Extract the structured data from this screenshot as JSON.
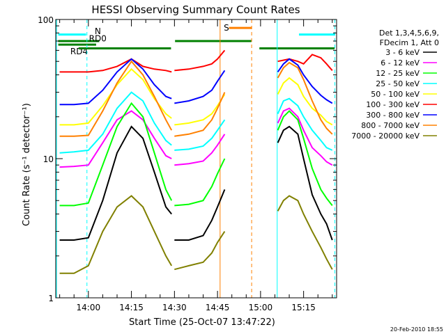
{
  "chart_data": {
    "type": "line",
    "title": "HESSI Observing Summary Count Rates",
    "xlabel": "Start Time (25-Oct-07 13:47:22)",
    "ylabel": "Count Rate (s⁻¹ detector⁻¹)",
    "yscale": "log",
    "ylim": [
      1,
      100
    ],
    "xlim_minutes": [
      -11.37,
      86.5
    ],
    "x_ticks": [
      {
        "label": "14:00",
        "min": 0
      },
      {
        "label": "14:15",
        "min": 15
      },
      {
        "label": "14:30",
        "min": 30
      },
      {
        "label": "14:45",
        "min": 45
      },
      {
        "label": "15:00",
        "min": 60
      },
      {
        "label": "15:15",
        "min": 75
      }
    ],
    "y_ticks": [
      {
        "label": "1",
        "value": 1
      },
      {
        "label": "10",
        "value": 10
      },
      {
        "label": "100",
        "value": 100
      }
    ],
    "legend_header": [
      "Det 1,3,4,5,6,9,",
      "FDecim 1, Att 0"
    ],
    "legend_position": "right",
    "series": [
      {
        "name": "3 - 6 keV",
        "color": "#000000",
        "segments": [
          {
            "x": [
              -10,
              -5,
              0,
              5,
              10,
              15,
              19,
              23,
              27,
              29
            ],
            "y": [
              2.6,
              2.6,
              2.7,
              5,
              11,
              17,
              14,
              8,
              4.5,
              4
            ]
          },
          {
            "x": [
              30,
              35,
              40,
              43,
              45,
              47.5
            ],
            "y": [
              2.6,
              2.6,
              2.8,
              3.6,
              4.5,
              6
            ]
          },
          {
            "x": [
              66,
              68,
              70,
              73,
              75,
              78,
              81,
              83,
              85
            ],
            "y": [
              13,
              16,
              17,
              15,
              10,
              5.5,
              4,
              3.4,
              2.6
            ]
          }
        ]
      },
      {
        "name": "6 - 12 keV",
        "color": "#ff00ff",
        "segments": [
          {
            "x": [
              -10,
              -5,
              0,
              5,
              10,
              15,
              19,
              23,
              27,
              29
            ],
            "y": [
              8.7,
              8.8,
              9,
              13,
              19,
              22,
              19,
              14,
              10.5,
              10
            ]
          },
          {
            "x": [
              30,
              35,
              40,
              43,
              45,
              47.5
            ],
            "y": [
              9,
              9.2,
              9.6,
              11,
              12.5,
              15
            ]
          },
          {
            "x": [
              66,
              68,
              70,
              73,
              75,
              78,
              81,
              83,
              85
            ],
            "y": [
              18,
              22,
              23,
              20,
              16,
              12,
              10.5,
              9.5,
              9
            ]
          }
        ]
      },
      {
        "name": "12 - 25 keV",
        "color": "#00ff00",
        "segments": [
          {
            "x": [
              -10,
              -5,
              0,
              5,
              10,
              15,
              19,
              23,
              27,
              29
            ],
            "y": [
              4.6,
              4.6,
              4.8,
              9,
              17,
              25,
              20,
              11,
              6,
              5
            ]
          },
          {
            "x": [
              30,
              35,
              40,
              43,
              45,
              47.5
            ],
            "y": [
              4.6,
              4.7,
              5,
              6.3,
              7.8,
              10
            ]
          },
          {
            "x": [
              66,
              68,
              70,
              73,
              75,
              78,
              81,
              83,
              85
            ],
            "y": [
              16,
              20,
              22,
              19,
              14,
              8.5,
              6,
              5.2,
              4.6
            ]
          }
        ]
      },
      {
        "name": "25 - 50 keV",
        "color": "#00ffff",
        "segments": [
          {
            "x": [
              -10,
              -5,
              0,
              5,
              10,
              15,
              19,
              23,
              27,
              29
            ],
            "y": [
              11,
              11.2,
              11.5,
              15,
              23,
              30,
              26,
              18,
              13.5,
              12.5
            ]
          },
          {
            "x": [
              30,
              35,
              40,
              43,
              45,
              47.5
            ],
            "y": [
              11.5,
              11.7,
              12.3,
              14,
              16,
              19
            ]
          },
          {
            "x": [
              66,
              68,
              70,
              73,
              75,
              78,
              81,
              83,
              85
            ],
            "y": [
              21,
              26,
              27,
              24,
              20,
              16,
              13.5,
              12,
              11.5
            ]
          }
        ]
      },
      {
        "name": "50 - 100 keV",
        "color": "#ffff00",
        "segments": [
          {
            "x": [
              -10,
              -5,
              0,
              5,
              10,
              15,
              19,
              23,
              27,
              29
            ],
            "y": [
              17.5,
              17.5,
              18,
              24,
              34,
              44,
              37,
              27,
              21,
              19.5
            ]
          },
          {
            "x": [
              30,
              35,
              40,
              43,
              45,
              47.5
            ],
            "y": [
              17.5,
              18,
              19,
              21,
              24,
              29
            ]
          },
          {
            "x": [
              66,
              68,
              70,
              73,
              75,
              78,
              81,
              83,
              85
            ],
            "y": [
              29,
              35,
              38,
              34,
              28,
              23,
              20.5,
              18.5,
              17.5
            ]
          }
        ]
      },
      {
        "name": "100 - 300 keV",
        "color": "#ff0000",
        "segments": [
          {
            "x": [
              -10,
              -5,
              0,
              5,
              10,
              15,
              19,
              23,
              27,
              29
            ],
            "y": [
              42,
              42,
              42,
              43,
              46,
              52,
              46,
              44,
              43,
              42
            ]
          },
          {
            "x": [
              30,
              35,
              40,
              43,
              45,
              47.5
            ],
            "y": [
              43,
              44,
              46,
              48,
              52,
              60
            ]
          },
          {
            "x": [
              66,
              68,
              70,
              73,
              75,
              78,
              81,
              83,
              85
            ],
            "y": [
              50,
              51,
              52,
              50,
              48,
              56,
              53,
              48,
              43
            ]
          }
        ]
      },
      {
        "name": "300 - 800 keV",
        "color": "#0000ff",
        "segments": [
          {
            "x": [
              -10,
              -5,
              0,
              5,
              10,
              15,
              19,
              23,
              27,
              29
            ],
            "y": [
              24.5,
              24.5,
              25,
              31,
              42,
              52,
              44,
              34,
              28,
              27
            ]
          },
          {
            "x": [
              30,
              35,
              40,
              43,
              45,
              47.5
            ],
            "y": [
              25,
              26,
              28,
              31,
              36,
              43
            ]
          },
          {
            "x": [
              66,
              68,
              70,
              73,
              75,
              78,
              81,
              83,
              85
            ],
            "y": [
              42,
              48,
              52,
              47,
              40,
              33,
              28.5,
              26.5,
              25
            ]
          }
        ]
      },
      {
        "name": "800 - 7000 keV",
        "color": "#ff8000",
        "segments": [
          {
            "x": [
              -10,
              -5,
              0,
              5,
              10,
              15,
              19,
              23,
              27,
              29
            ],
            "y": [
              14.5,
              14.5,
              14.7,
              22,
              35,
              50,
              40,
              28,
              19,
              16
            ]
          },
          {
            "x": [
              30,
              35,
              40,
              43,
              45,
              47.5
            ],
            "y": [
              14.5,
              15,
              16,
              19,
              23,
              30
            ]
          },
          {
            "x": [
              66,
              68,
              70,
              73,
              75,
              78,
              81,
              83,
              85
            ],
            "y": [
              38,
              45,
              49,
              45,
              37,
              26,
              19,
              16.5,
              15
            ]
          }
        ]
      },
      {
        "name": "7000 - 20000 keV",
        "color": "#808000",
        "segments": [
          {
            "x": [
              -10,
              -5,
              0,
              5,
              10,
              15,
              19,
              23,
              27,
              29
            ],
            "y": [
              1.5,
              1.5,
              1.7,
              3,
              4.5,
              5.4,
              4.5,
              3,
              2,
              1.7
            ]
          },
          {
            "x": [
              30,
              35,
              40,
              43,
              45,
              47.5
            ],
            "y": [
              1.6,
              1.7,
              1.8,
              2.1,
              2.5,
              3
            ]
          },
          {
            "x": [
              66,
              68,
              70,
              73,
              75,
              78,
              81,
              83,
              85
            ],
            "y": [
              4.2,
              5,
              5.4,
              5,
              4,
              3,
              2.3,
              1.9,
              1.6
            ]
          }
        ]
      }
    ],
    "flag_bars": [
      {
        "label": "N",
        "color": "#00ffff",
        "y": 78,
        "x": [
          -10.5,
          -0.8
        ],
        "label_x": 2.2,
        "label_y": 82,
        "label_color": "#00ffff"
      },
      {
        "label": "",
        "color": "#00ffff",
        "y": 78,
        "x": [
          73.4,
          85.8
        ]
      },
      {
        "label": "RD0",
        "color": "#008000",
        "y": 70,
        "x": [
          -10.5,
          3.8
        ],
        "label_x": 0.2,
        "label_y": 73,
        "label_color": "#000000"
      },
      {
        "label": "RD4",
        "color": "#008000",
        "y": 66,
        "x": [
          -10.5,
          2.7
        ],
        "label_x": -6.3,
        "label_y": 59,
        "label_color": "#000000"
      },
      {
        "label": "",
        "color": "#008000",
        "y": 62,
        "x": [
          -3.4,
          28.8
        ]
      },
      {
        "label": "",
        "color": "#008000",
        "y": 70,
        "x": [
          30.2,
          56.8
        ]
      },
      {
        "label": "",
        "color": "#008000",
        "y": 62,
        "x": [
          59.6,
          85.8
        ]
      },
      {
        "label": "S",
        "color": "#ff8000",
        "y": 87,
        "x": [
          49,
          57
        ],
        "label_x": 47.2,
        "label_y": 87,
        "label_color": "#ff8000"
      }
    ],
    "vertical_markers": [
      {
        "x": -0.5,
        "color": "#00ffff",
        "style": "dashed"
      },
      {
        "x": 85.9,
        "color": "#00ffff",
        "style": "dashed"
      },
      {
        "x": 45.9,
        "color": "#ff8000",
        "style": "solid"
      },
      {
        "x": 56.9,
        "color": "#ff8000",
        "style": "dashed"
      },
      {
        "x": 65.8,
        "color": "#00ffff",
        "style": "solid"
      },
      {
        "x": -11.1,
        "color": "#00ffff",
        "style": "solid"
      }
    ]
  },
  "footer": {
    "timestamp": "20-Feb-2010 18:55"
  }
}
